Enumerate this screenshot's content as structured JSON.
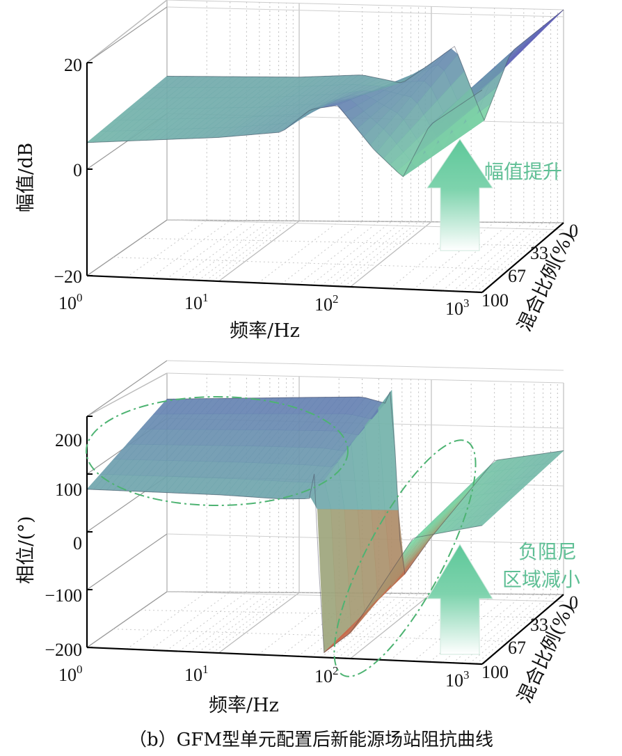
{
  "caption": "（b）GFM型单元配置后新能源场站阻抗曲线",
  "colors": {
    "low": "#d2553a",
    "mid": "#7ed7a6",
    "high": "#5b58b8",
    "annotation": "#5fbf95"
  },
  "chart_data": [
    {
      "type": "surface",
      "title": "",
      "xlabel": "频率/Hz",
      "ylabel": "混合比例(%)",
      "zlabel": "幅值/dB",
      "x_scale": "log",
      "xlim": [
        1,
        1000
      ],
      "x_ticks": [
        {
          "base": "10",
          "exp": "0"
        },
        {
          "base": "10",
          "exp": "1"
        },
        {
          "base": "10",
          "exp": "2"
        },
        {
          "base": "10",
          "exp": "3"
        }
      ],
      "ylim": [
        0,
        100
      ],
      "y_ticks": [
        "0",
        "33",
        "67",
        "100"
      ],
      "zlim": [
        -20,
        20
      ],
      "z_ticks": [
        "20",
        "0",
        "−20"
      ],
      "grid": true,
      "annotation": {
        "text": "幅值提升",
        "arrow": "up"
      },
      "series": [
        {
          "mix": 0,
          "x": [
            1,
            10,
            30,
            60,
            90,
            150,
            250,
            400,
            1000
          ],
          "z": [
            7,
            7,
            7.5,
            6,
            9,
            13,
            -1,
            12,
            20
          ]
        },
        {
          "mix": 100,
          "x": [
            1,
            10,
            30,
            50,
            80,
            150,
            250,
            400,
            1000
          ],
          "z": [
            5,
            7,
            8.5,
            13,
            14,
            6,
            1,
            11,
            18
          ]
        }
      ]
    },
    {
      "type": "surface",
      "title": "",
      "xlabel": "频率/Hz",
      "ylabel": "混合比例(%)",
      "zlabel": "相位/(°)",
      "x_scale": "log",
      "xlim": [
        1,
        1000
      ],
      "x_ticks": [
        {
          "base": "10",
          "exp": "0"
        },
        {
          "base": "10",
          "exp": "1"
        },
        {
          "base": "10",
          "exp": "2"
        },
        {
          "base": "10",
          "exp": "3"
        }
      ],
      "ylim": [
        0,
        100
      ],
      "y_ticks": [
        "0",
        "33",
        "67",
        "100"
      ],
      "zlim": [
        -200,
        250
      ],
      "z_ticks": [
        "200",
        "100",
        "0",
        "−100",
        "−200"
      ],
      "grid": true,
      "annotation": {
        "text_lines": [
          "负阻尼",
          "区域减小"
        ],
        "arrow": "up"
      },
      "series": [
        {
          "mix": 0,
          "x": [
            1,
            10,
            30,
            45,
            50,
            60,
            100,
            300,
            1000
          ],
          "z": [
            175,
            180,
            182,
            170,
            200,
            -170,
            -90,
            60,
            80
          ]
        },
        {
          "mix": 100,
          "x": [
            1,
            10,
            30,
            50,
            55,
            60,
            100,
            300,
            1000
          ],
          "z": [
            108,
            108,
            105,
            108,
            185,
            -195,
            -150,
            40,
            70
          ]
        }
      ]
    }
  ]
}
